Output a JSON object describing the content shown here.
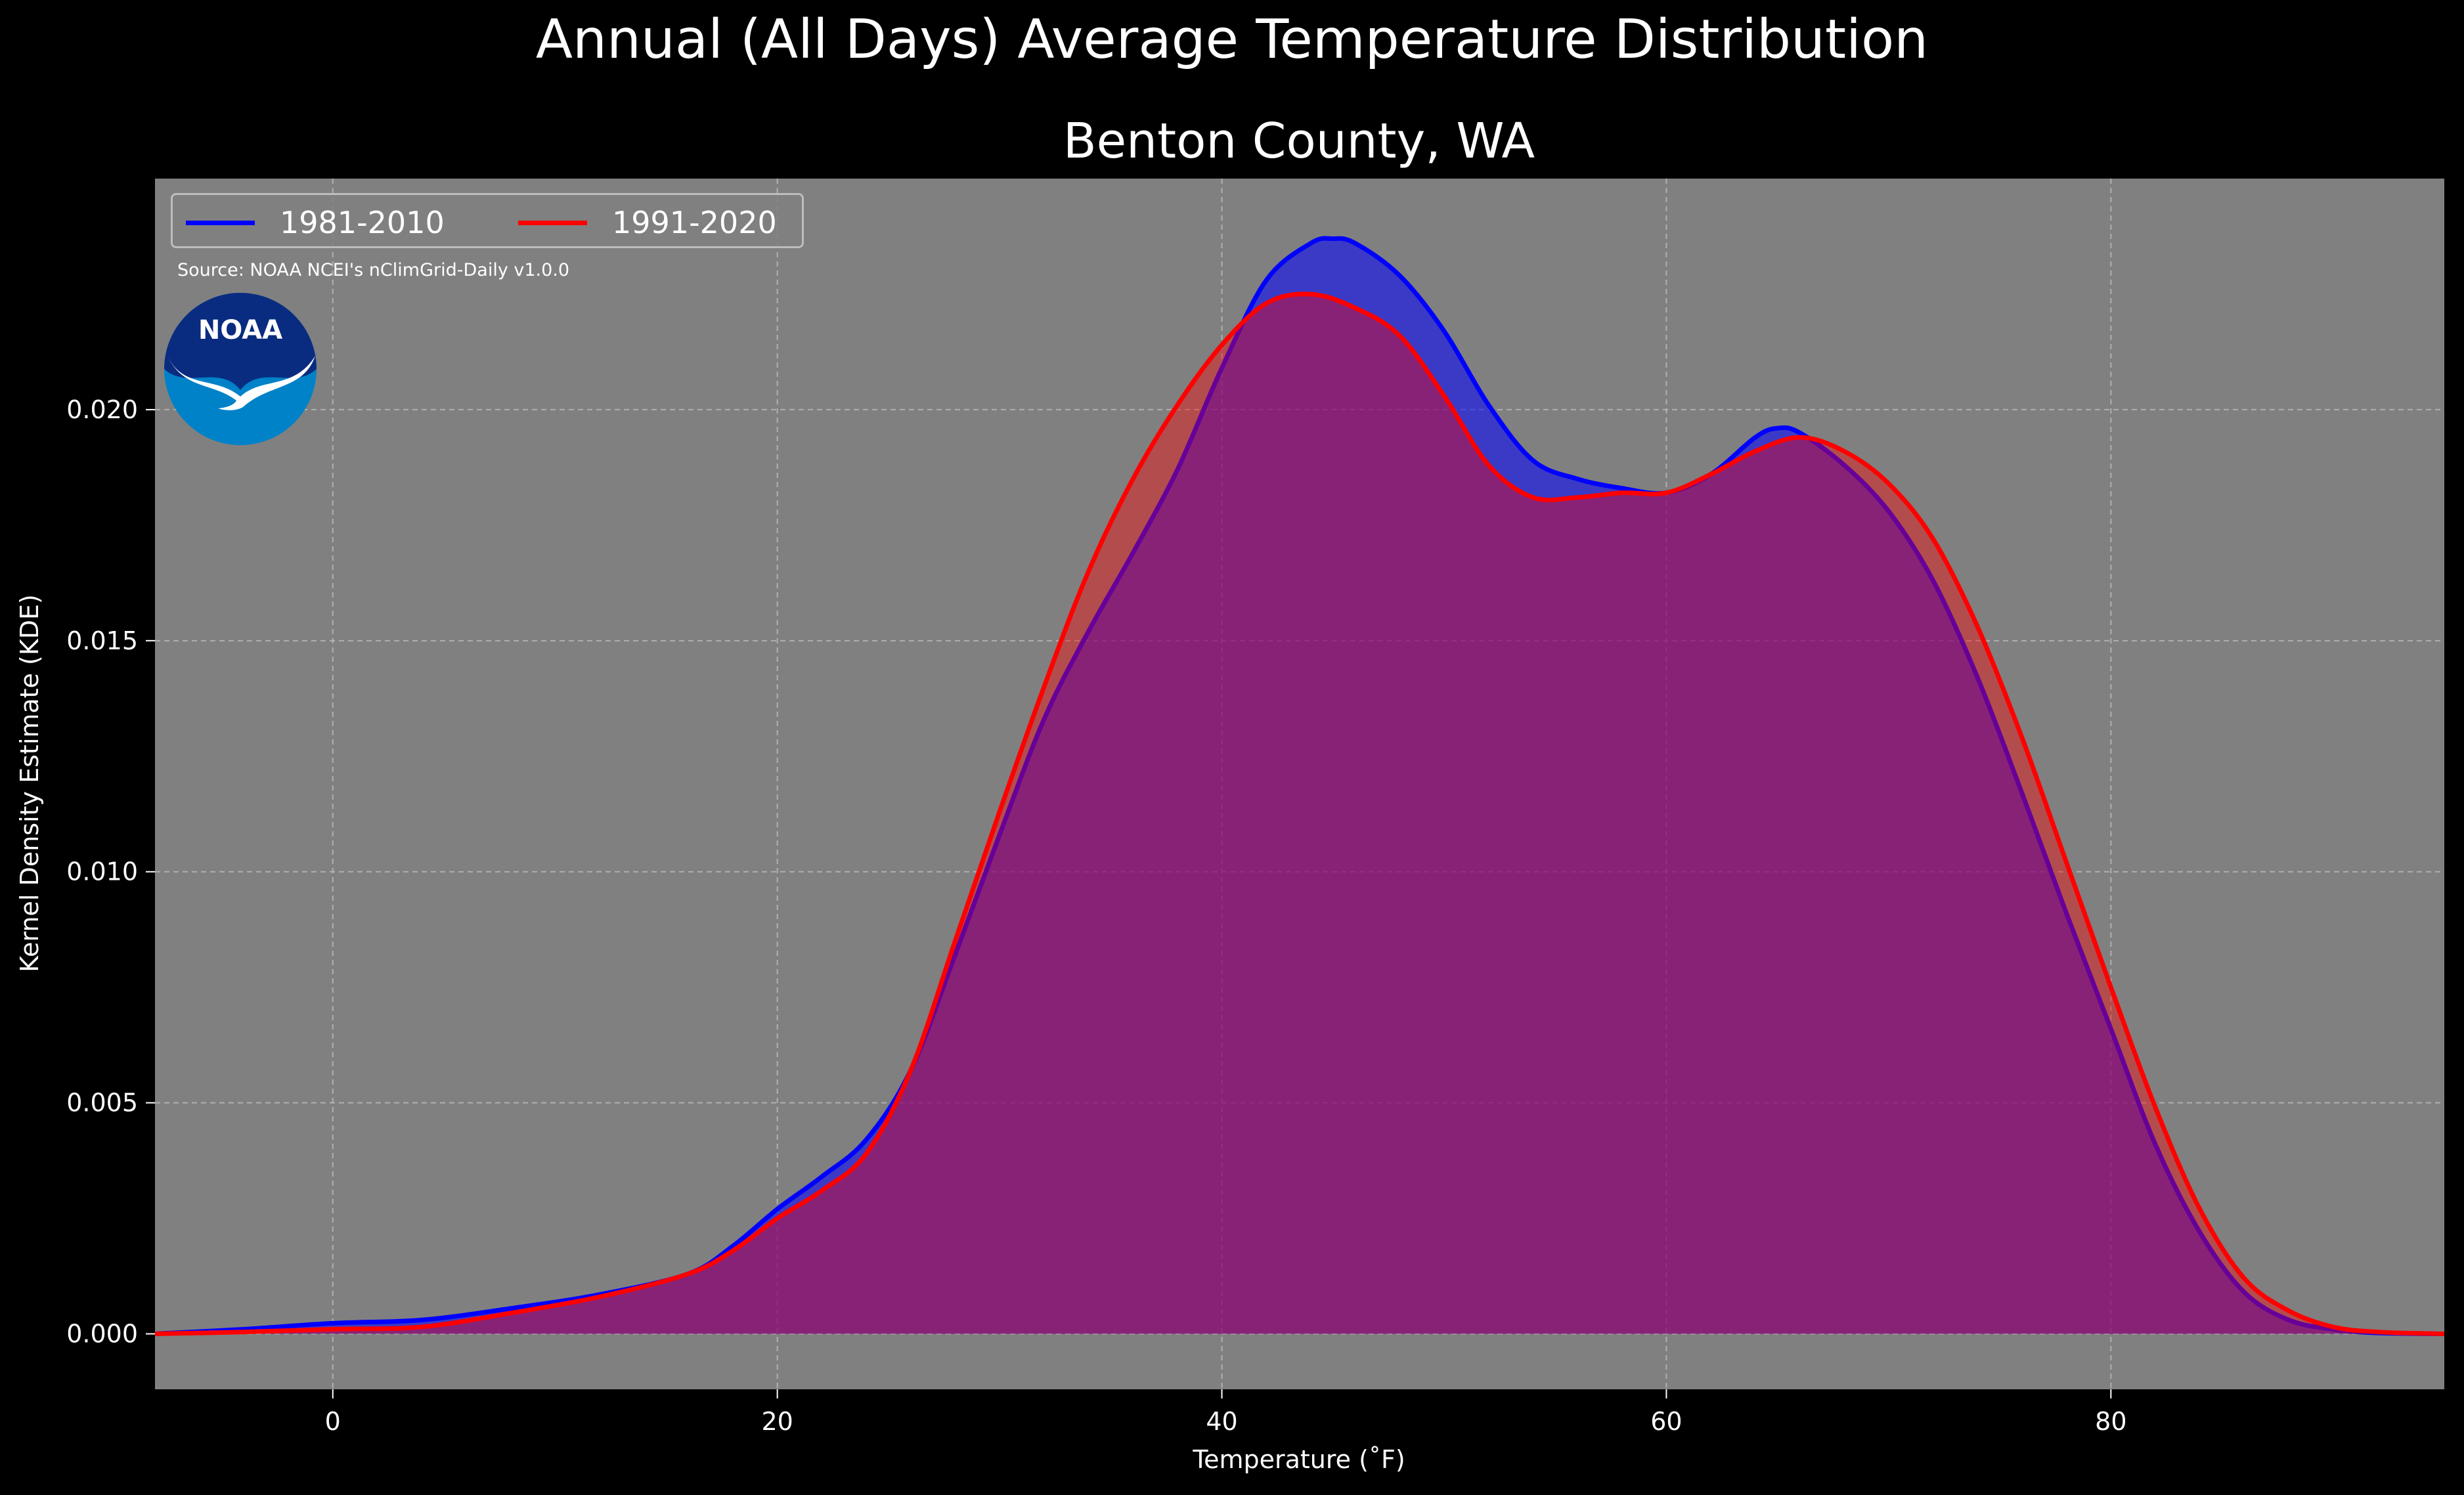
{
  "page_title": "Annual (All Days) Average Temperature Distribution",
  "chart_data": {
    "type": "area",
    "title": "Benton County, WA",
    "suptitle": "Annual (All Days) Average Temperature Distribution",
    "xlabel": "Temperature (˚F)",
    "ylabel": "Kernel Density Estimate (KDE)",
    "xlim": [
      -8,
      95
    ],
    "ylim": [
      -0.0012,
      0.025
    ],
    "xticks": [
      0,
      20,
      40,
      60,
      80
    ],
    "yticks": [
      0.0,
      0.005,
      0.01,
      0.015,
      0.02
    ],
    "ytick_labels": [
      "0.000",
      "0.005",
      "0.010",
      "0.015",
      "0.020"
    ],
    "grid": true,
    "legend_position": "upper-left",
    "annotation": "Source: NOAA NCEI's nClimGrid-Daily v1.0.0",
    "logo_text": "NOAA",
    "series": [
      {
        "name": "1981-2010",
        "color": "#0000ff",
        "fill": "rgba(0,0,255,0.55)",
        "x": [
          -8,
          -4,
          0,
          4,
          8,
          12,
          16,
          18,
          20,
          22,
          24,
          26,
          28,
          30,
          32,
          34,
          36,
          38,
          40,
          42,
          44,
          45,
          46,
          48,
          50,
          52,
          54,
          56,
          58,
          60,
          62,
          64,
          65,
          66,
          68,
          70,
          72,
          74,
          76,
          78,
          80,
          82,
          84,
          86,
          88,
          90,
          92,
          95
        ],
        "y": [
          0.0,
          0.0001,
          0.00023,
          0.0003,
          0.00055,
          0.00085,
          0.0013,
          0.0019,
          0.0027,
          0.0034,
          0.0042,
          0.0057,
          0.0082,
          0.0108,
          0.0133,
          0.0152,
          0.0169,
          0.0187,
          0.0209,
          0.0228,
          0.0236,
          0.0237,
          0.0236,
          0.0229,
          0.0217,
          0.0201,
          0.0189,
          0.0185,
          0.0183,
          0.0182,
          0.0186,
          0.0194,
          0.0196,
          0.0195,
          0.0188,
          0.0178,
          0.0163,
          0.0142,
          0.0117,
          0.0091,
          0.0066,
          0.0041,
          0.0022,
          0.0009,
          0.0003,
          0.0001,
          2e-05,
          0.0
        ]
      },
      {
        "name": "1991-2020",
        "color": "#ff0000",
        "fill": "rgba(255,0,0,0.4)",
        "x": [
          -8,
          -4,
          0,
          4,
          8,
          12,
          16,
          18,
          20,
          22,
          24,
          26,
          28,
          30,
          32,
          34,
          36,
          38,
          40,
          42,
          44,
          46,
          48,
          50,
          52,
          54,
          56,
          58,
          60,
          62,
          64,
          66,
          68,
          70,
          72,
          74,
          76,
          78,
          80,
          82,
          84,
          86,
          88,
          90,
          92,
          95
        ],
        "y": [
          0.0,
          4e-05,
          0.0001,
          0.00015,
          0.00045,
          0.0008,
          0.0013,
          0.0018,
          0.0025,
          0.0031,
          0.0039,
          0.0057,
          0.0085,
          0.0113,
          0.014,
          0.0165,
          0.0185,
          0.0201,
          0.0214,
          0.0223,
          0.0225,
          0.0222,
          0.0216,
          0.0203,
          0.0188,
          0.0181,
          0.0181,
          0.0182,
          0.0182,
          0.0186,
          0.0191,
          0.0194,
          0.0191,
          0.0184,
          0.0172,
          0.0153,
          0.0129,
          0.0102,
          0.0075,
          0.0049,
          0.0027,
          0.0012,
          0.0005,
          0.00015,
          4e-05,
          0.0
        ]
      }
    ]
  }
}
